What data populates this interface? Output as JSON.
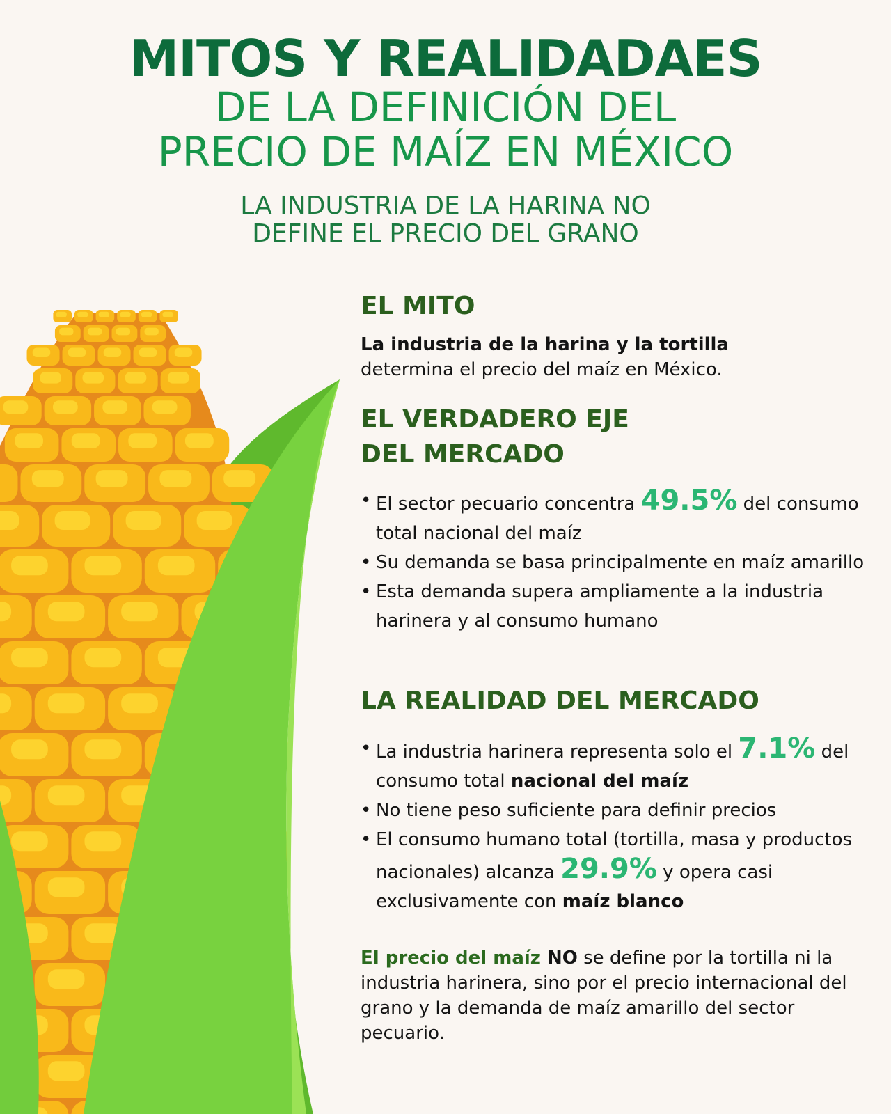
{
  "header": {
    "title": "MITOS Y REALIDADAES",
    "subtitle_line1": "DE LA DEFINICIÓN DEL",
    "subtitle_line2": "PRECIO DE MAÍZ EN MÉXICO",
    "tagline_line1": "LA INDUSTRIA DE LA HARINA NO",
    "tagline_line2": "DEFINE EL PRECIO DEL GRANO"
  },
  "myth": {
    "heading": "EL MITO",
    "bold": "La industria de la harina y la tortilla",
    "text": "determina el precio del maíz en México."
  },
  "axis": {
    "heading_line1": "EL VERDADERO EJE",
    "heading_line2": "DEL MERCADO",
    "b1_pre": "El sector pecuario concentra ",
    "b1_pct": "49.5%",
    "b1_post": " del consumo total nacional del maíz",
    "b2": "Su demanda se basa principalmente en maíz amarillo",
    "b3": "Esta demanda supera ampliamente a la industria harinera y al consumo humano"
  },
  "reality": {
    "heading": "LA REALIDAD DEL MERCADO",
    "b1_pre": "La industria harinera representa solo el ",
    "b1_pct": "7.1%",
    "b1_mid": " del consumo total ",
    "b1_bold": "nacional del maíz",
    "b2": "No tiene peso suficiente para definir precios",
    "b3_pre": "El consumo humano total (tortilla, masa y productos nacionales) alcanza ",
    "b3_pct": "29.9%",
    "b3_mid": " y opera casi exclusivamente con ",
    "b3_bold": "maíz blanco"
  },
  "conclusion": {
    "green": "El precio del maíz",
    "bold": " NO",
    "text": " se define por la tortilla ni la industria harinera, sino por el precio internacional del grano y la demanda de maíz amarillo del sector pecuario."
  },
  "colors": {
    "title": "#0d6b3b",
    "subtitle": "#17964a",
    "heading": "#2b5f1e",
    "percent": "#2bb673",
    "background": "#faf6f2",
    "kernel": "#f9b91a",
    "leaf": "#6cc83a"
  },
  "illustration": "corn-cob-with-leaves"
}
